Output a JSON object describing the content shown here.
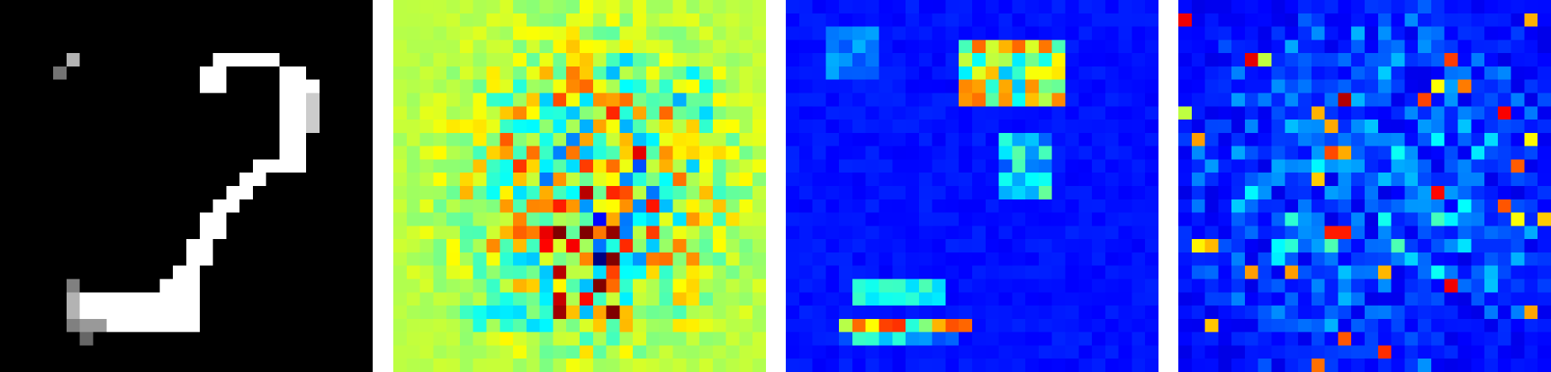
{
  "figure": {
    "grid_size": 28,
    "panels": [
      {
        "id": "input-image",
        "colormap": "gray",
        "background_color": "#000000"
      },
      {
        "id": "signed-attribution-map",
        "colormap": "jet",
        "background_color": "#9CFF64"
      },
      {
        "id": "positive-attribution-map",
        "colormap": "jet",
        "background_color": "#0000A8"
      },
      {
        "id": "absolute-attribution-map",
        "colormap": "jet",
        "background_color": "#0000A8"
      }
    ]
  }
}
